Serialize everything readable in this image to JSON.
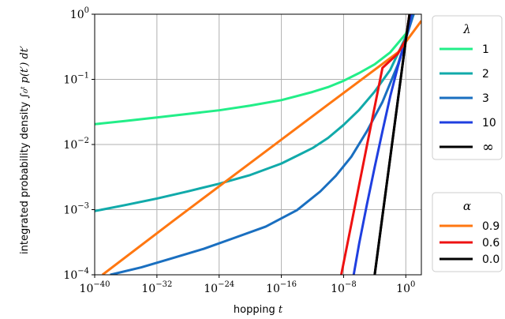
{
  "chart_data": {
    "type": "line",
    "title": "",
    "xlabel": "hopping",
    "xlabel_var": "t",
    "ylabel": "integrated probability density",
    "ylabel_formula": "∫₀ᵗ p(t′) dt′",
    "xscale": "log",
    "yscale": "log",
    "xlim": [
      1e-40,
      100.0
    ],
    "ylim": [
      0.0001,
      1
    ],
    "grid": true,
    "x_ticks": [
      {
        "value": 1e-40,
        "base": "10",
        "exp": "−40"
      },
      {
        "value": 1e-32,
        "base": "10",
        "exp": "−32"
      },
      {
        "value": 1e-24,
        "base": "10",
        "exp": "−24"
      },
      {
        "value": 1e-16,
        "base": "10",
        "exp": "−16"
      },
      {
        "value": 1e-08,
        "base": "10",
        "exp": "−8"
      },
      {
        "value": 1,
        "base": "10",
        "exp": "0"
      }
    ],
    "y_ticks": [
      {
        "value": 0.0001,
        "base": "10",
        "exp": "−4"
      },
      {
        "value": 0.001,
        "base": "10",
        "exp": "−3"
      },
      {
        "value": 0.01,
        "base": "10",
        "exp": "−2"
      },
      {
        "value": 0.1,
        "base": "10",
        "exp": "−1"
      },
      {
        "value": 1,
        "base": "10",
        "exp": "0"
      }
    ],
    "series": [
      {
        "name": "1",
        "legend": "lambda",
        "color": "#22ee88",
        "x": [
          1e-40,
          1e-36,
          1e-32,
          1e-28,
          1e-24,
          1e-20,
          1e-16,
          1e-12,
          1e-10,
          1e-08,
          1e-06,
          0.0001,
          0.01,
          1,
          10
        ],
        "y": [
          0.0205,
          0.023,
          0.026,
          0.0295,
          0.0335,
          0.0395,
          0.048,
          0.064,
          0.076,
          0.095,
          0.125,
          0.17,
          0.26,
          0.5,
          1.0
        ]
      },
      {
        "name": "2",
        "legend": "lambda",
        "color": "#11aaaa",
        "x": [
          1e-40,
          1e-36,
          1e-32,
          1e-28,
          1e-24,
          1e-20,
          1e-16,
          1e-12,
          1e-10,
          1e-08,
          1e-06,
          0.0001,
          0.01,
          1,
          10
        ],
        "y": [
          0.00095,
          0.00118,
          0.00148,
          0.00191,
          0.0025,
          0.0034,
          0.0051,
          0.0088,
          0.0126,
          0.02,
          0.034,
          0.065,
          0.14,
          0.45,
          1.0
        ]
      },
      {
        "name": "3",
        "legend": "lambda",
        "color": "#1a6fc0",
        "x": [
          1e-38,
          1e-34,
          1e-30,
          1e-26,
          1e-22,
          1e-18,
          1e-14,
          1e-11,
          1e-09,
          1e-07,
          1e-05,
          0.001,
          0.1,
          1,
          10
        ],
        "y": [
          0.0001,
          0.00013,
          0.00018,
          0.00025,
          0.00037,
          0.00055,
          0.00098,
          0.0019,
          0.0033,
          0.0065,
          0.016,
          0.045,
          0.17,
          0.42,
          1.0
        ]
      },
      {
        "name": "10",
        "legend": "lambda",
        "color": "#1f3fe0",
        "x": [
          2e-07,
          1e-06,
          1e-05,
          0.0001,
          0.001,
          0.01,
          0.1,
          1,
          5
        ],
        "y": [
          0.0001,
          0.0003,
          0.0012,
          0.0045,
          0.016,
          0.055,
          0.16,
          0.42,
          1.0
        ]
      },
      {
        "name": "∞",
        "legend": "lambda",
        "color": "#000000",
        "x": [
          0.0001,
          0.001,
          0.01,
          0.1,
          1,
          3
        ],
        "y": [
          0.0001,
          0.0008,
          0.0063,
          0.05,
          0.4,
          1.0
        ]
      },
      {
        "name": "0.9",
        "legend": "alpha",
        "color": "#ff7711",
        "x": [
          1e-39,
          1e-30,
          1e-20,
          1e-10,
          0.1,
          100
        ],
        "y": [
          0.0001,
          0.00066,
          0.0052,
          0.041,
          0.26,
          0.79
        ]
      },
      {
        "name": "0.6",
        "legend": "alpha",
        "color": "#ee1111",
        "x": [
          5e-09,
          1e-07,
          1e-05,
          0.001,
          0.1,
          1,
          3
        ],
        "y": [
          0.0001,
          0.0006,
          0.0096,
          0.15,
          0.25,
          0.41,
          1.0
        ]
      },
      {
        "name": "0.0",
        "legend": "alpha",
        "color": "#000000",
        "x": [
          0.0001,
          0.001,
          0.01,
          0.1,
          1,
          3
        ],
        "y": [
          0.0001,
          0.0008,
          0.0063,
          0.05,
          0.4,
          1.0
        ]
      }
    ],
    "legends": [
      {
        "title": "λ",
        "placement": "upper right",
        "entries": [
          "1",
          "2",
          "3",
          "10",
          "∞"
        ]
      },
      {
        "title": "α",
        "placement": "lower right",
        "entries": [
          "0.9",
          "0.6",
          "0.0"
        ]
      }
    ]
  }
}
